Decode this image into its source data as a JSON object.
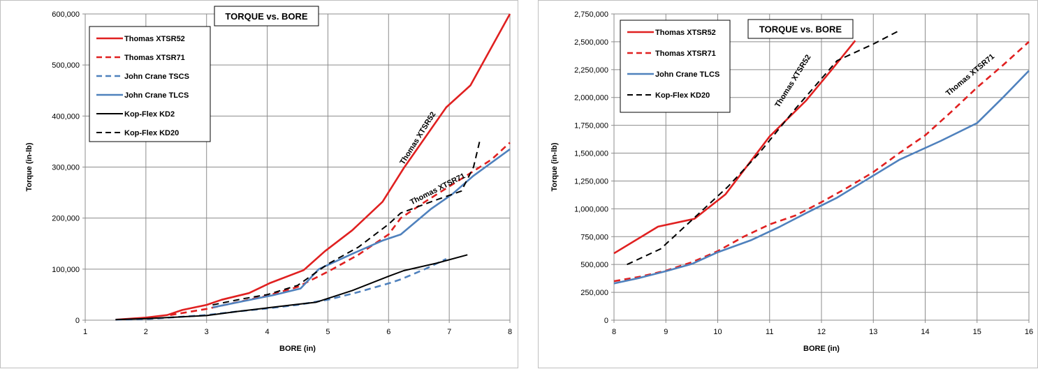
{
  "chart_data": [
    {
      "type": "line",
      "title": "TORQUE vs. BORE",
      "xlabel": "BORE (in)",
      "ylabel": "Torque (in-lb)",
      "xlim": [
        1,
        8
      ],
      "ylim": [
        0,
        600000
      ],
      "xticks": [
        1,
        2,
        3,
        4,
        5,
        6,
        7,
        8
      ],
      "yticks": [
        0,
        100000,
        200000,
        300000,
        400000,
        500000,
        600000
      ],
      "xtick_labels": [
        "1",
        "2",
        "3",
        "4",
        "5",
        "6",
        "7",
        "8"
      ],
      "ytick_labels": [
        "0",
        "100,000",
        "200,000",
        "300,000",
        "400,000",
        "500,000",
        "600,000"
      ],
      "grid": true,
      "legend_position": "top-left",
      "series": [
        {
          "name": "Thomas XTSR52",
          "color": "#e02020",
          "dash": "solid",
          "x": [
            1.5,
            2.0,
            2.35,
            2.6,
            3.0,
            3.25,
            3.7,
            4.05,
            4.6,
            4.95,
            5.4,
            5.9,
            6.25,
            6.95,
            7.35,
            8.0
          ],
          "y": [
            1000,
            5000,
            10000,
            20000,
            30000,
            40000,
            53000,
            73000,
            98000,
            135000,
            176000,
            232000,
            298000,
            417000,
            460000,
            600000
          ]
        },
        {
          "name": "Thomas XTSR71",
          "color": "#e02020",
          "dash": "dashed",
          "x": [
            2.4,
            3.0,
            3.5,
            4.0,
            4.5,
            5.0,
            5.5,
            6.0,
            6.2,
            6.6,
            7.0,
            7.4,
            7.7,
            8.0
          ],
          "y": [
            10000,
            22000,
            35000,
            48000,
            65000,
            95000,
            128000,
            168000,
            200000,
            232000,
            262000,
            292000,
            315000,
            348000
          ]
        },
        {
          "name": "John Crane TSCS",
          "color": "#4f81bd",
          "dash": "dashed",
          "x": [
            1.5,
            2.0,
            2.5,
            3.0,
            3.5,
            4.0,
            4.5,
            5.0,
            5.5,
            6.0,
            6.2,
            6.6,
            6.95
          ],
          "y": [
            1000,
            2000,
            6000,
            10000,
            17000,
            23000,
            30000,
            40000,
            55000,
            72000,
            80000,
            100000,
            120000
          ]
        },
        {
          "name": "John Crane TLCS",
          "color": "#4f81bd",
          "dash": "solid",
          "x": [
            3.1,
            3.6,
            4.1,
            4.55,
            4.85,
            5.4,
            5.9,
            6.2,
            6.7,
            7.05,
            7.4,
            8.0
          ],
          "y": [
            25000,
            37000,
            49000,
            62000,
            100000,
            130000,
            156000,
            168000,
            218000,
            247000,
            283000,
            335000
          ]
        },
        {
          "name": "Kop-Flex KD2",
          "color": "#000000",
          "dash": "solid",
          "x": [
            1.5,
            2.0,
            2.5,
            3.0,
            3.5,
            4.0,
            4.5,
            4.8,
            5.4,
            6.0,
            6.25,
            6.8,
            7.3
          ],
          "y": [
            1000,
            3000,
            6000,
            9000,
            17000,
            24000,
            31000,
            35000,
            58000,
            86000,
            97000,
            112000,
            128000
          ]
        },
        {
          "name": "Kop-Flex KD20",
          "color": "#000000",
          "dash": "dashed",
          "x": [
            3.1,
            3.6,
            4.0,
            4.5,
            5.0,
            5.5,
            6.0,
            6.2,
            6.7,
            7.2,
            7.4,
            7.5
          ],
          "y": [
            30000,
            42000,
            50000,
            68000,
            110000,
            143000,
            188000,
            210000,
            232000,
            253000,
            300000,
            350000
          ]
        }
      ],
      "annotations": [
        "Thomas XTSR52",
        "Thomas XTSR71"
      ]
    },
    {
      "type": "line",
      "title": "TORQUE vs. BORE",
      "xlabel": "BORE (in)",
      "ylabel": "Torque (in-lb)",
      "xlim": [
        8,
        16
      ],
      "ylim": [
        0,
        2750000
      ],
      "xticks": [
        8,
        9,
        10,
        11,
        12,
        13,
        14,
        15,
        16
      ],
      "yticks": [
        0,
        250000,
        500000,
        750000,
        1000000,
        1250000,
        1500000,
        1750000,
        2000000,
        2250000,
        2500000,
        2750000
      ],
      "xtick_labels": [
        "8",
        "9",
        "10",
        "11",
        "12",
        "13",
        "14",
        "15",
        "16"
      ],
      "ytick_labels": [
        "0",
        "250,000",
        "500,000",
        "750,000",
        "1,000,000",
        "1,250,000",
        "1,500,000",
        "1,750,000",
        "2,000,000",
        "2,250,000",
        "2,500,000",
        "2,750,000"
      ],
      "grid": true,
      "legend_position": "top-left",
      "series": [
        {
          "name": "Thomas XTSR52",
          "color": "#e02020",
          "dash": "solid",
          "x": [
            8.0,
            8.85,
            9.55,
            10.15,
            11.0,
            11.7,
            12.2,
            12.65
          ],
          "y": [
            600000,
            840000,
            910000,
            1130000,
            1650000,
            1970000,
            2250000,
            2510000
          ]
        },
        {
          "name": "Thomas XTSR71",
          "color": "#e02020",
          "dash": "dashed",
          "x": [
            8.0,
            8.5,
            9.0,
            9.5,
            10.0,
            10.5,
            11.0,
            11.5,
            12.0,
            12.5,
            13.0,
            13.5,
            14.0,
            14.5,
            15.0,
            15.5,
            16.0
          ],
          "y": [
            350000,
            390000,
            445000,
            520000,
            620000,
            750000,
            860000,
            940000,
            1060000,
            1190000,
            1330000,
            1500000,
            1660000,
            1870000,
            2090000,
            2290000,
            2500000
          ]
        },
        {
          "name": "John Crane TLCS",
          "color": "#4f81bd",
          "dash": "solid",
          "x": [
            8.0,
            8.5,
            9.0,
            9.5,
            10.0,
            10.65,
            11.2,
            11.7,
            12.3,
            12.9,
            13.5,
            14.3,
            15.0,
            15.5,
            16.0
          ],
          "y": [
            330000,
            380000,
            440000,
            505000,
            610000,
            720000,
            840000,
            960000,
            1100000,
            1270000,
            1440000,
            1610000,
            1770000,
            2000000,
            2240000
          ]
        },
        {
          "name": "Kop-Flex KD20",
          "color": "#000000",
          "dash": "dashed",
          "x": [
            8.25,
            8.9,
            9.55,
            10.2,
            10.8,
            11.5,
            12.3,
            13.0,
            13.5
          ],
          "y": [
            500000,
            640000,
            920000,
            1200000,
            1500000,
            1900000,
            2330000,
            2480000,
            2600000
          ]
        }
      ],
      "annotations": [
        "Thomas XTSR52",
        "Thomas XTSR71"
      ]
    }
  ]
}
